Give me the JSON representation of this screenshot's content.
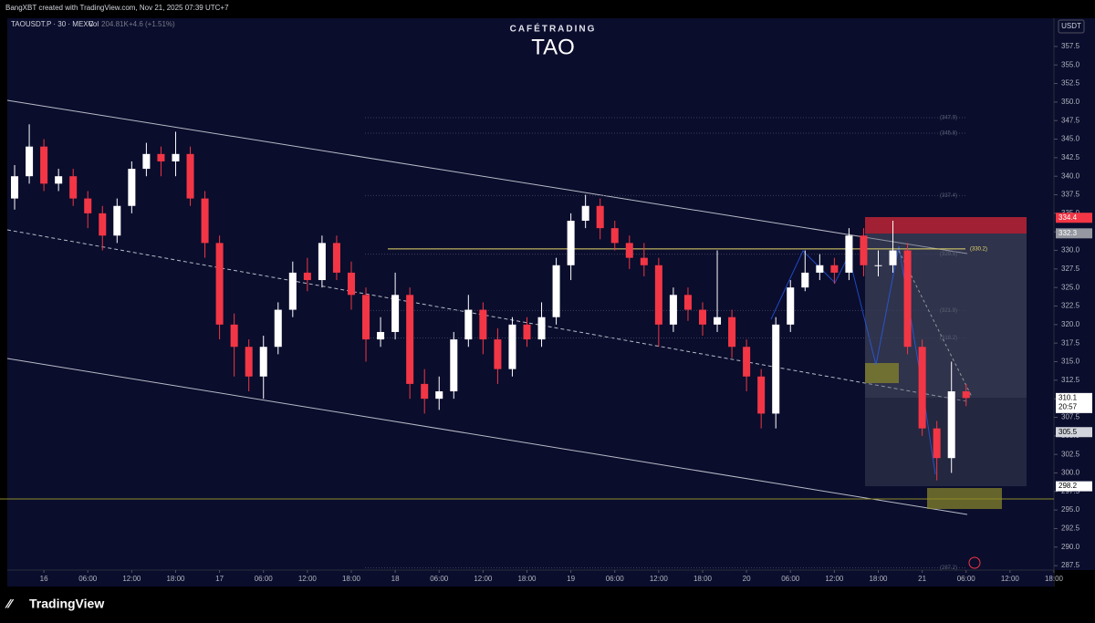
{
  "header": {
    "credit": "BangXBT created with TradingView.com, Nov 21, 2025 07:39 UTC+7",
    "symbol": "TAOUSDT.P · 30 · MEXC",
    "vol_label": "Vol",
    "vol_value": "204.81K",
    "change": "+4.6 (+1.51%)",
    "watermark_top": "CAFÉTRADING",
    "watermark": "TAO",
    "currency": "USDT",
    "footer": "TradingView"
  },
  "chart_data": {
    "type": "candlestick",
    "x": [
      -4,
      -2,
      0,
      2,
      4,
      6,
      8,
      10,
      12,
      14,
      16,
      18,
      20,
      22,
      24,
      26,
      28,
      30,
      32,
      34,
      36,
      38,
      40,
      42,
      44,
      46,
      48,
      50,
      52,
      54,
      56,
      58,
      60,
      62,
      64,
      66,
      68,
      70,
      72,
      74,
      76,
      78,
      80,
      82,
      84,
      86,
      88,
      90,
      92,
      94,
      96,
      98,
      100,
      102,
      104,
      106,
      108,
      110,
      112,
      114,
      116,
      118,
      120,
      122,
      124,
      126
    ],
    "open": [
      337,
      340,
      344,
      339,
      340,
      337,
      335,
      332,
      336,
      341,
      343,
      342,
      343,
      337,
      331,
      320,
      317,
      313,
      317,
      322,
      327,
      326,
      331,
      327,
      324,
      318,
      319,
      324,
      312,
      310,
      311,
      318,
      322,
      318,
      314,
      320,
      318,
      321,
      328,
      334,
      336,
      333,
      331,
      329,
      328,
      320,
      324,
      322,
      320,
      321,
      317,
      313,
      308,
      320,
      325,
      327,
      328,
      327,
      332,
      328,
      328,
      330,
      317,
      306,
      302,
      311
    ],
    "high": [
      341.5,
      347,
      345,
      341,
      341,
      338,
      336,
      337,
      342,
      344.5,
      344,
      346,
      344,
      338,
      332,
      321.5,
      318,
      318.5,
      323,
      328.5,
      329,
      332,
      332,
      328.5,
      325,
      321,
      327,
      325,
      314,
      313,
      319,
      324,
      323,
      319.5,
      321,
      321,
      323,
      329,
      335,
      337.5,
      337,
      334,
      332,
      331,
      329,
      325,
      325,
      323,
      330,
      322,
      318,
      314,
      321,
      326,
      330,
      329.5,
      329,
      333,
      333,
      330,
      334,
      331,
      318,
      307,
      315,
      312
    ],
    "low": [
      335.5,
      339,
      338,
      338,
      336,
      333,
      330,
      331,
      335,
      340,
      340,
      340,
      336,
      329,
      318,
      313,
      311,
      310,
      316,
      321,
      324.5,
      325,
      326,
      322,
      315,
      317,
      318,
      310,
      308,
      308.5,
      310,
      317,
      316,
      312,
      313,
      317,
      317,
      320,
      326,
      333,
      331.5,
      330,
      327.5,
      326.5,
      317,
      319,
      320.5,
      318.5,
      319,
      315.5,
      311,
      306,
      306,
      319,
      324.5,
      326,
      325.5,
      326,
      326.5,
      326.5,
      327,
      316,
      305,
      299,
      300,
      309
    ],
    "close": [
      340,
      344,
      339,
      340,
      337,
      335,
      332,
      336,
      341,
      343,
      342,
      343,
      337,
      331,
      320,
      317,
      313,
      317,
      322,
      327,
      326,
      331,
      327,
      324,
      318,
      319,
      324,
      312,
      310,
      311,
      318,
      322,
      318,
      314,
      320,
      318,
      321,
      328,
      334,
      336,
      333,
      331,
      329,
      328,
      320,
      324,
      322,
      320,
      321,
      317,
      313,
      308,
      320,
      325,
      327,
      328,
      327,
      332,
      328,
      328,
      330,
      317,
      306,
      302,
      311,
      310.1
    ],
    "up_color": "#ffffff",
    "down_color": "#f23645",
    "xlim": [
      -5,
      138
    ],
    "ylim": [
      286.9,
      361.3
    ],
    "xticks": [
      {
        "value": 0,
        "label": "16"
      },
      {
        "value": 6,
        "label": "06:00"
      },
      {
        "value": 12,
        "label": "12:00"
      },
      {
        "value": 18,
        "label": "18:00"
      },
      {
        "value": 24,
        "label": "17"
      },
      {
        "value": 30,
        "label": "06:00"
      },
      {
        "value": 36,
        "label": "12:00"
      },
      {
        "value": 42,
        "label": "18:00"
      },
      {
        "value": 48,
        "label": "18"
      },
      {
        "value": 54,
        "label": "06:00"
      },
      {
        "value": 60,
        "label": "12:00"
      },
      {
        "value": 66,
        "label": "18:00"
      },
      {
        "value": 72,
        "label": "19"
      },
      {
        "value": 78,
        "label": "06:00"
      },
      {
        "value": 84,
        "label": "12:00"
      },
      {
        "value": 90,
        "label": "18:00"
      },
      {
        "value": 96,
        "label": "20"
      },
      {
        "value": 102,
        "label": "06:00"
      },
      {
        "value": 108,
        "label": "12:00"
      },
      {
        "value": 114,
        "label": "18:00"
      },
      {
        "value": 120,
        "label": "21"
      },
      {
        "value": 126,
        "label": "06:00"
      },
      {
        "value": 132,
        "label": "12:00"
      },
      {
        "value": 138,
        "label": "18:00"
      }
    ],
    "yticks": [
      {
        "value": 287.5,
        "label": "287.5"
      },
      {
        "value": 290,
        "label": "290.0"
      },
      {
        "value": 292.5,
        "label": "292.5"
      },
      {
        "value": 295,
        "label": "295.0"
      },
      {
        "value": 297.5,
        "label": "297.5"
      },
      {
        "value": 300,
        "label": "300.0"
      },
      {
        "value": 302.5,
        "label": "302.5"
      },
      {
        "value": 305,
        "label": "305.0"
      },
      {
        "value": 307.5,
        "label": "307.5"
      },
      {
        "value": 310,
        "label": "310.0"
      },
      {
        "value": 312.5,
        "label": "312.5"
      },
      {
        "value": 315,
        "label": "315.0"
      },
      {
        "value": 317.5,
        "label": "317.5"
      },
      {
        "value": 320,
        "label": "320.0"
      },
      {
        "value": 322.5,
        "label": "322.5"
      },
      {
        "value": 325,
        "label": "325.0"
      },
      {
        "value": 327.5,
        "label": "327.5"
      },
      {
        "value": 330,
        "label": "330.0"
      },
      {
        "value": 332.5,
        "label": "332.5"
      },
      {
        "value": 335,
        "label": "335.0"
      },
      {
        "value": 337.5,
        "label": "337.5"
      },
      {
        "value": 340,
        "label": "340.0"
      },
      {
        "value": 342.5,
        "label": "342.5"
      },
      {
        "value": 345,
        "label": "345.0"
      },
      {
        "value": 347.5,
        "label": "347.5"
      },
      {
        "value": 350,
        "label": "350.0"
      },
      {
        "value": 352.5,
        "label": "352.5"
      },
      {
        "value": 355,
        "label": "355.0"
      },
      {
        "value": 357.5,
        "label": "357.5"
      }
    ],
    "level": {
      "value": 330.2,
      "label": "(330.2)",
      "color": "#e6d96a"
    },
    "fib_levels": [
      {
        "value": 347.9,
        "label": "(347.9)"
      },
      {
        "value": 345.8,
        "label": "(345.8)"
      },
      {
        "value": 337.4,
        "label": "(337.4)"
      },
      {
        "value": 329.5,
        "label": "(329.5)"
      },
      {
        "value": 321.9,
        "label": "(321.9)"
      },
      {
        "value": 318.2,
        "label": "(318.2)"
      },
      {
        "value": 287.2,
        "label": "(287.2)"
      }
    ],
    "price_markers": [
      {
        "value": 334.4,
        "label": "334.4",
        "color": "#f23645"
      },
      {
        "value": 332.3,
        "label": "332.3",
        "color": "#9598a1"
      },
      {
        "value": 310.1,
        "label": "310.1",
        "color": "#ffffff",
        "countdown": "20:57"
      },
      {
        "value": 305.5,
        "label": "305.5",
        "color": "#d1d4dc"
      },
      {
        "value": 298.2,
        "label": "298.2",
        "color": "#ffffff"
      }
    ]
  }
}
